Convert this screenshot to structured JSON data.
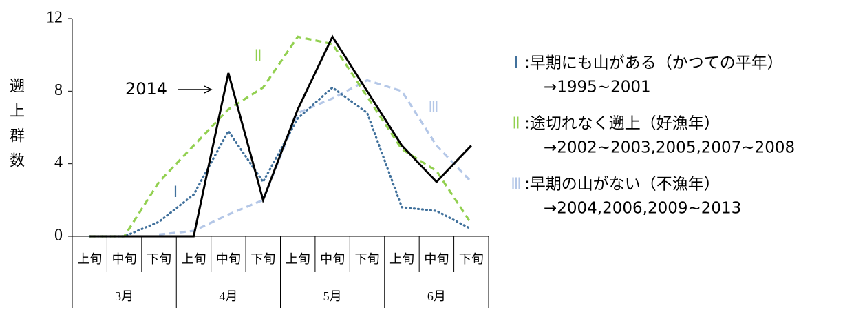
{
  "chart_data": {
    "type": "line",
    "y_label": "遡上群数",
    "categories": [
      "上旬",
      "中旬",
      "下旬",
      "上旬",
      "中旬",
      "下旬",
      "上旬",
      "中旬",
      "下旬",
      "上旬",
      "中旬",
      "下旬"
    ],
    "months": [
      "3月",
      "4月",
      "5月",
      "6月"
    ],
    "ylim": [
      0,
      12
    ],
    "yticks": [
      0,
      4,
      8,
      12
    ],
    "series": [
      {
        "name": "Ⅲ",
        "color": "#b4c7e7",
        "style": "dashed",
        "values": [
          null,
          null,
          0.1,
          0.3,
          1.2,
          2,
          6.8,
          7.6,
          8.6,
          8,
          5,
          3
        ]
      },
      {
        "name": "Ⅰ",
        "color": "#41719c",
        "style": "dotted",
        "values": [
          0,
          0,
          0.8,
          2.3,
          5.8,
          3,
          6.5,
          8.2,
          6.8,
          1.6,
          1.4,
          0.4
        ]
      },
      {
        "name": "Ⅱ",
        "color": "#92d050",
        "style": "dashed",
        "values": [
          0,
          0,
          3,
          5,
          7,
          8.2,
          11,
          10.6,
          7.7,
          4.8,
          3.6,
          0.7
        ]
      },
      {
        "name": "2014",
        "color": "#000000",
        "style": "solid",
        "values": [
          0,
          0,
          0,
          0,
          9,
          2,
          7,
          11,
          8,
          5,
          3,
          5
        ]
      }
    ],
    "legend_notes": [
      {
        "series": 1,
        "text": ":早期にも山がある（かつての平年）",
        "years": "→1995~2001"
      },
      {
        "series": 2,
        "text": ":途切れなく遡上（好漁年）",
        "years": "→2002~2003,2005,2007~2008"
      },
      {
        "series": 0,
        "text": ":早期の山がない（不漁年）",
        "years": "→2004,2006,2009~2013"
      }
    ]
  }
}
